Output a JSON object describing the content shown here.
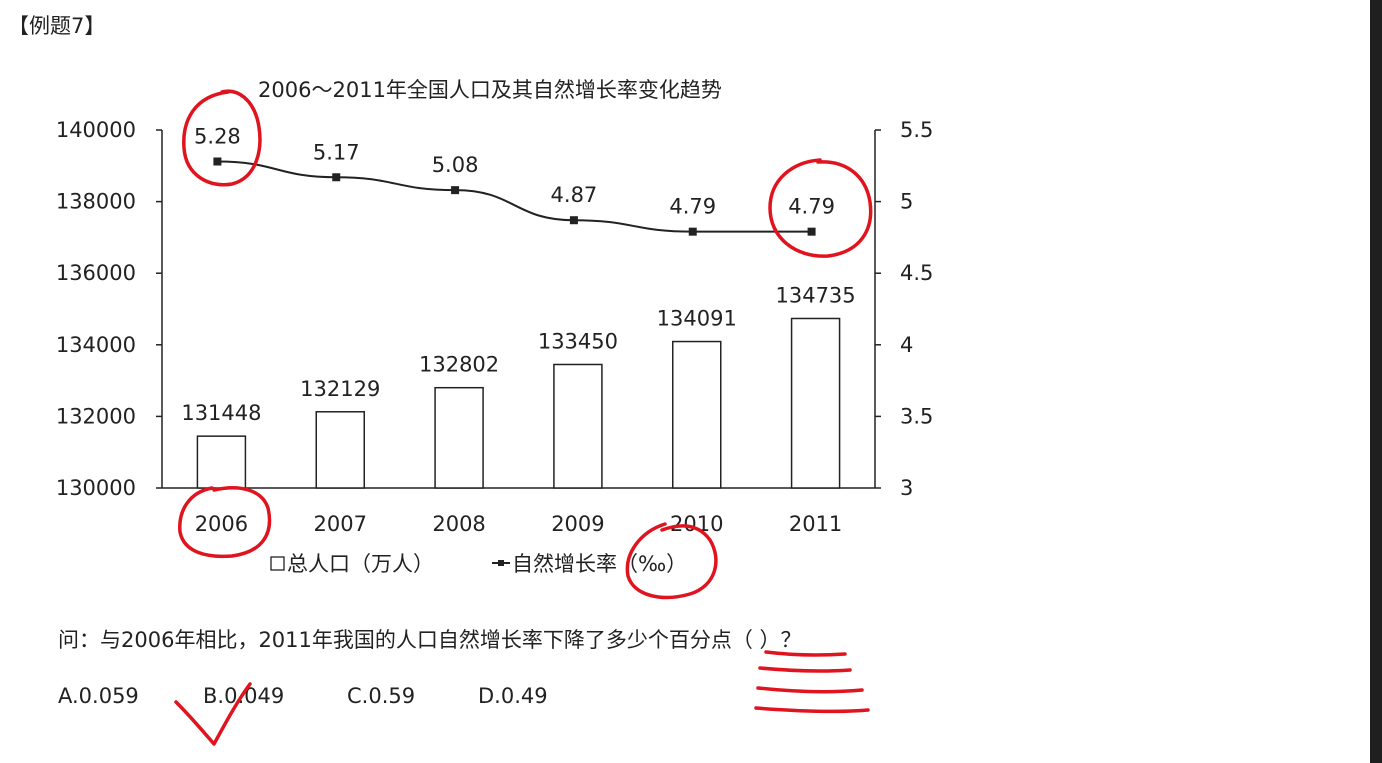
{
  "page": {
    "example_label": "【例题7】",
    "question": "问：与2006年相比，2011年我国的人口自然增长率下降了多少个百分点（  ）？",
    "options": [
      "A.0.059",
      "B.0.049",
      "C.0.59",
      "D.0.49"
    ]
  },
  "chart_data": {
    "type": "bar",
    "title": "2006～2011年全国人口及其自然增长率变化趋势",
    "categories": [
      "2006",
      "2007",
      "2008",
      "2009",
      "2010",
      "2011"
    ],
    "series": [
      {
        "name": "总人口（万人）",
        "type": "bar",
        "axis": "left",
        "values": [
          131448,
          132129,
          132802,
          133450,
          134091,
          134735
        ]
      },
      {
        "name": "自然增长率（‰）",
        "type": "line",
        "axis": "right",
        "values": [
          5.28,
          5.17,
          5.08,
          4.87,
          4.79,
          4.79
        ]
      }
    ],
    "y_left": {
      "min": 130000,
      "max": 140000,
      "ticks": [
        130000,
        132000,
        134000,
        136000,
        138000,
        140000
      ]
    },
    "y_right": {
      "min": 3,
      "max": 5.5,
      "ticks": [
        "3",
        "3.5",
        "4",
        "4.5",
        "5",
        "5.5"
      ]
    },
    "legend_position": "bottom",
    "grid": false,
    "colors": {
      "bar_fill": "#ffffff",
      "bar_stroke": "#222222",
      "line": "#222222",
      "annotation": "#e0141e"
    }
  }
}
